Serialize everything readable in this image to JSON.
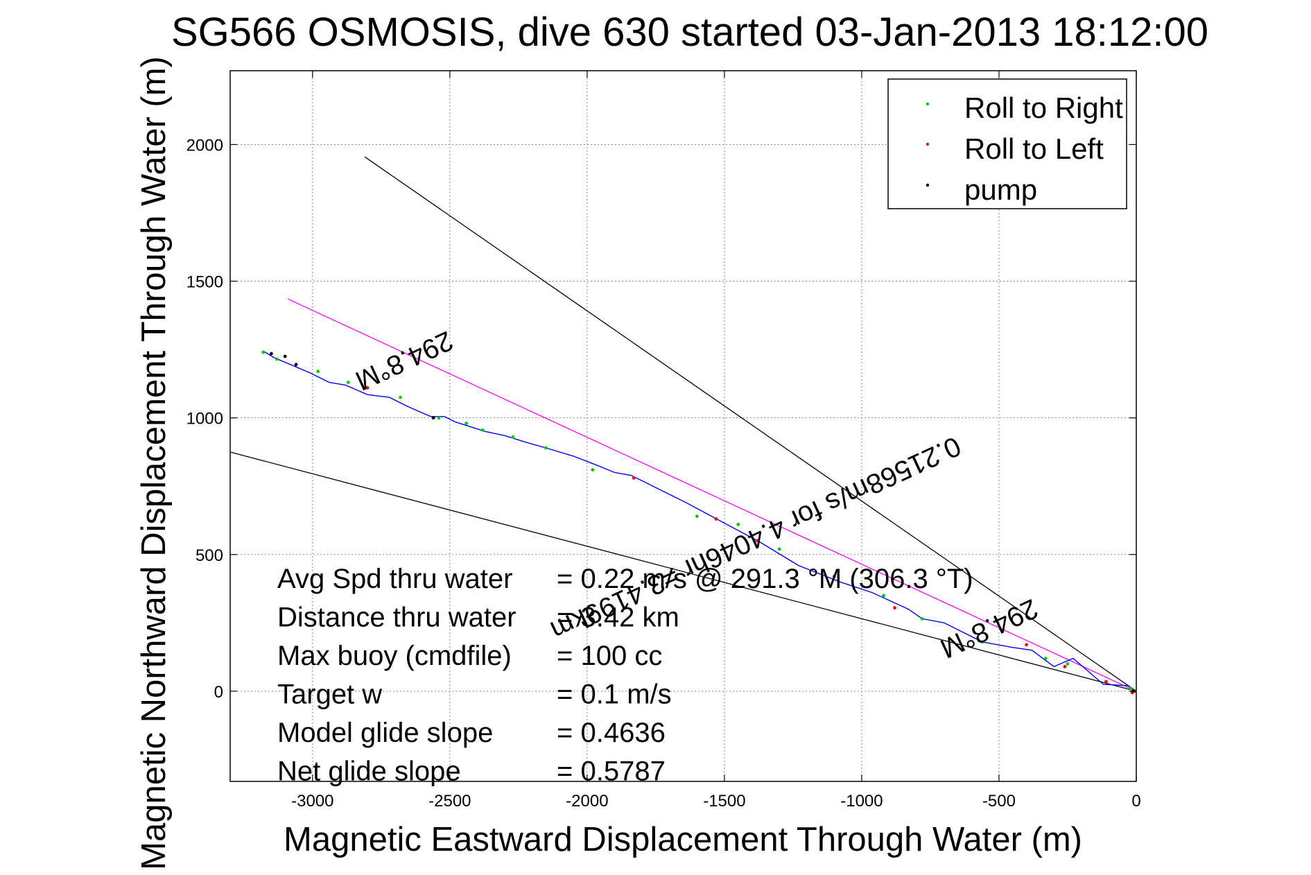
{
  "chart_data": {
    "type": "line",
    "title": "SG566 OSMOSIS, dive 630 started 03-Jan-2013 18:12:00",
    "xlabel": "Magnetic Eastward Displacement Through Water (m)",
    "ylabel": "Magnetic Northward Displacement Through Water (m)",
    "xlim": [
      -3300,
      0
    ],
    "ylim": [
      -330,
      2270
    ],
    "xticks": [
      -3000,
      -2500,
      -2000,
      -1500,
      -1000,
      -500,
      0
    ],
    "yticks": [
      0,
      500,
      1000,
      1500,
      2000
    ],
    "grid": true,
    "legend_position": "top-right",
    "legend": [
      {
        "label": "Roll to Right",
        "color": "#00cc00"
      },
      {
        "label": "Roll to Left",
        "color": "#ff0000"
      },
      {
        "label": "pump",
        "color": "#000000"
      }
    ],
    "series": [
      {
        "color": "#0000ff",
        "x": [
          0,
          -30,
          -120,
          -230,
          -300,
          -380,
          -450,
          -560,
          -700,
          -780,
          -830,
          -960,
          -1080,
          -1230,
          -1370,
          -1500,
          -1640,
          -1750,
          -1840,
          -1900,
          -1960,
          -2050,
          -2150,
          -2220,
          -2300,
          -2370,
          -2480,
          -2520,
          -2570,
          -2650,
          -2720,
          -2800,
          -2880,
          -2940,
          -3010,
          -3080,
          -3140,
          -3180
        ],
        "y": [
          0,
          20,
          25,
          120,
          90,
          150,
          160,
          180,
          250,
          265,
          300,
          360,
          400,
          460,
          545,
          615,
          690,
          745,
          790,
          800,
          825,
          860,
          890,
          910,
          935,
          950,
          985,
          1005,
          1005,
          1040,
          1075,
          1085,
          1120,
          1130,
          1165,
          1195,
          1220,
          1245
        ]
      }
    ],
    "reference_lines": [
      {
        "color": "#000000",
        "x": [
          0,
          -2810
        ],
        "y": [
          0,
          1955
        ]
      },
      {
        "color": "#000000",
        "x": [
          0,
          -3300
        ],
        "y": [
          0,
          875
        ]
      },
      {
        "color": "#ff00ff",
        "x": [
          0,
          -3090
        ],
        "y": [
          0,
          1435
        ]
      }
    ],
    "roll_right_points": {
      "color": "#00cc00",
      "x": [
        -3180,
        -3130,
        -2980,
        -2870,
        -2680,
        -2540,
        -2440,
        -2380,
        -2270,
        -2150,
        -1980,
        -1600,
        -1450,
        -1300,
        -920,
        -780,
        -560,
        -330,
        -250,
        -20
      ],
      "y": [
        1240,
        1215,
        1170,
        1130,
        1075,
        1000,
        980,
        955,
        930,
        890,
        810,
        640,
        610,
        520,
        350,
        265,
        180,
        120,
        100,
        10
      ]
    },
    "roll_left_points": {
      "color": "#ff0000",
      "x": [
        -2800,
        -1830,
        -1530,
        -1380,
        -1100,
        -880,
        -400,
        -260,
        -110,
        -15,
        -5
      ],
      "y": [
        1110,
        780,
        630,
        550,
        420,
        305,
        170,
        90,
        35,
        -5,
        0
      ]
    },
    "pump_points": {
      "color": "#000000",
      "x": [
        -3150,
        -3100,
        -3060,
        -2560,
        -10
      ],
      "y": [
        1235,
        1225,
        1195,
        1000,
        0
      ]
    },
    "annotations": [
      {
        "text": "294.8°M",
        "x": -2680,
        "y": 1240,
        "rotation": 155.2
      },
      {
        "text": "0.21568m/s for 4.4046hr =3.4199km",
        "x": -1400,
        "y": 590,
        "rotation": 155.2
      },
      {
        "text": "294.8°M",
        "x": -550,
        "y": 260,
        "rotation": 155.2
      }
    ],
    "stats": [
      {
        "label": "Avg Spd thru water",
        "value": "=  0.22 m/s @ 291.3 °M (306.3 °T)"
      },
      {
        "label": "Distance thru water",
        "value": "=  3.42 km"
      },
      {
        "label": "Max buoy (cmdfile)",
        "value": "= 100 cc"
      },
      {
        "label": "Target w",
        "value": "= 0.1 m/s"
      },
      {
        "label": "Model glide slope",
        "value": "= 0.4636"
      },
      {
        "label": "Net glide slope",
        "value": "= 0.5787"
      }
    ]
  }
}
